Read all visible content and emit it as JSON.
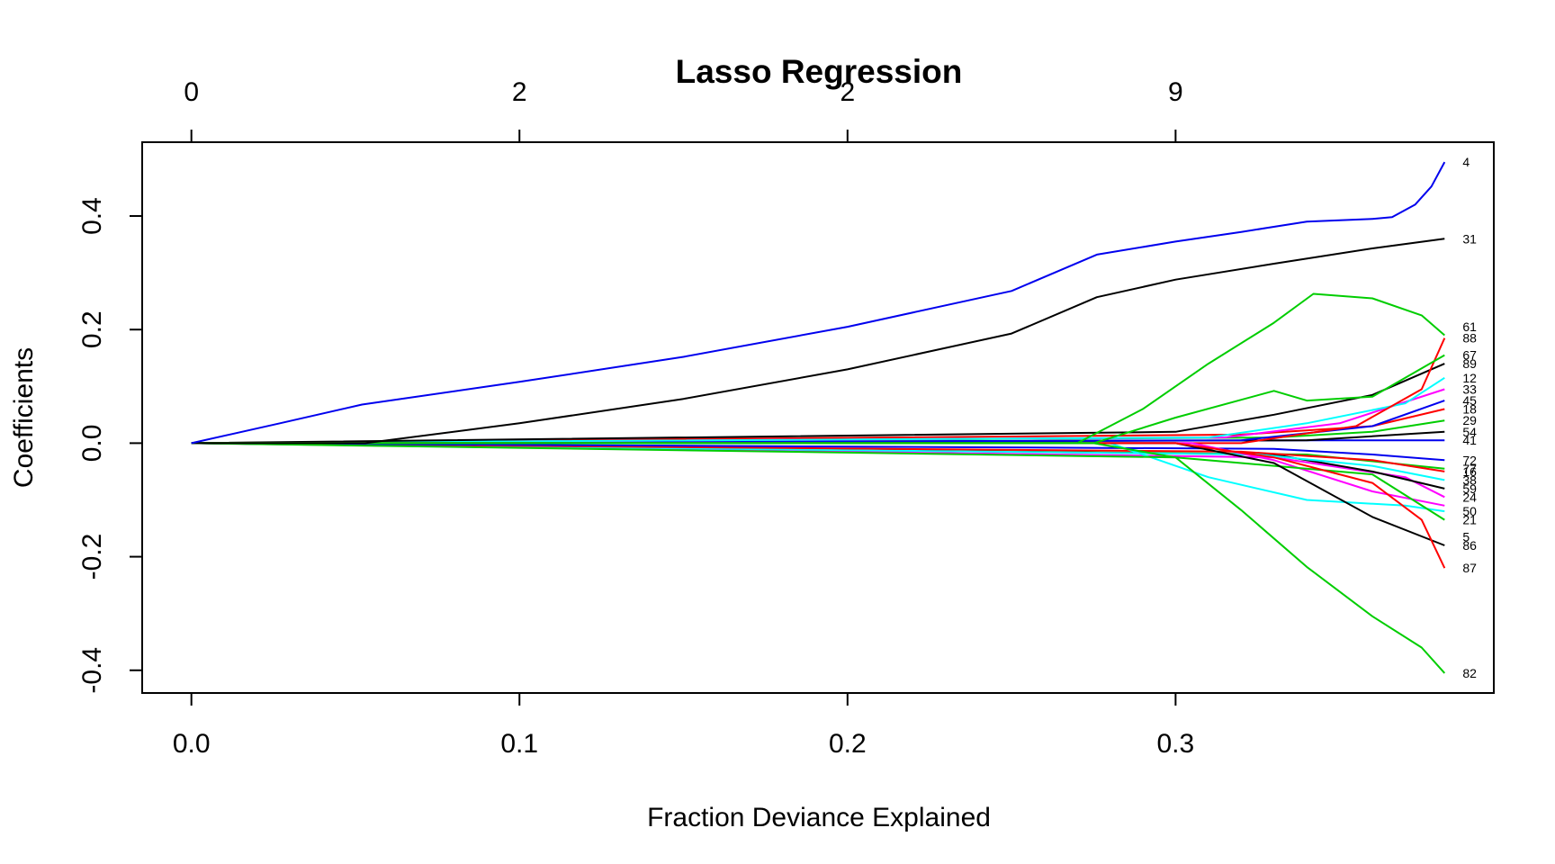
{
  "chart_data": {
    "type": "line",
    "title": "Lasso Regression",
    "xlabel": "Fraction Deviance Explained",
    "ylabel": "Coefficients",
    "xlim": [
      -0.015,
      0.397
    ],
    "ylim": [
      -0.44,
      0.53
    ],
    "x_ticks": [
      {
        "value": 0.0,
        "label": "0.0"
      },
      {
        "value": 0.1,
        "label": "0.1"
      },
      {
        "value": 0.2,
        "label": "0.2"
      },
      {
        "value": 0.3,
        "label": "0.3"
      }
    ],
    "y_ticks": [
      {
        "value": -0.4,
        "label": "-0.4"
      },
      {
        "value": -0.2,
        "label": "-0.2"
      },
      {
        "value": 0.0,
        "label": "0.0"
      },
      {
        "value": 0.2,
        "label": "0.2"
      },
      {
        "value": 0.4,
        "label": "0.4"
      }
    ],
    "top_ticks": [
      {
        "value": 0.0,
        "label": "0"
      },
      {
        "value": 0.1,
        "label": "2"
      },
      {
        "value": 0.2,
        "label": "2"
      },
      {
        "value": 0.3,
        "label": "9"
      }
    ],
    "grid": false,
    "series": [
      {
        "name": "4",
        "label_y": 0.495,
        "color": "#0000ee",
        "points": [
          [
            0,
            0
          ],
          [
            0.027,
            0.035
          ],
          [
            0.052,
            0.068
          ],
          [
            0.1,
            0.108
          ],
          [
            0.15,
            0.152
          ],
          [
            0.2,
            0.205
          ],
          [
            0.25,
            0.268
          ],
          [
            0.276,
            0.332
          ],
          [
            0.3,
            0.355
          ],
          [
            0.32,
            0.372
          ],
          [
            0.34,
            0.39
          ],
          [
            0.36,
            0.395
          ],
          [
            0.366,
            0.398
          ],
          [
            0.373,
            0.42
          ],
          [
            0.378,
            0.452
          ],
          [
            0.382,
            0.495
          ]
        ]
      },
      {
        "name": "31",
        "label_y": 0.36,
        "color": "#000000",
        "points": [
          [
            0,
            0
          ],
          [
            0.053,
            0
          ],
          [
            0.1,
            0.035
          ],
          [
            0.15,
            0.078
          ],
          [
            0.2,
            0.13
          ],
          [
            0.25,
            0.193
          ],
          [
            0.276,
            0.257
          ],
          [
            0.3,
            0.288
          ],
          [
            0.33,
            0.316
          ],
          [
            0.36,
            0.343
          ],
          [
            0.382,
            0.36
          ]
        ]
      },
      {
        "name": "61",
        "label_y": 0.205,
        "color": "#00cd00",
        "points": [
          [
            0,
            0
          ],
          [
            0.27,
            0
          ],
          [
            0.29,
            0.06
          ],
          [
            0.31,
            0.14
          ],
          [
            0.33,
            0.212
          ],
          [
            0.342,
            0.263
          ],
          [
            0.36,
            0.255
          ],
          [
            0.375,
            0.225
          ],
          [
            0.382,
            0.19
          ]
        ]
      },
      {
        "name": "82",
        "label_y": -0.405,
        "color": "#00cd00",
        "points": [
          [
            0,
            0
          ],
          [
            0.275,
            0
          ],
          [
            0.3,
            -0.025
          ],
          [
            0.32,
            -0.118
          ],
          [
            0.34,
            -0.218
          ],
          [
            0.36,
            -0.305
          ],
          [
            0.375,
            -0.36
          ],
          [
            0.382,
            -0.405
          ]
        ]
      },
      {
        "name": "67",
        "label_y": 0.155,
        "color": "#00cd00",
        "points": [
          [
            0,
            0
          ],
          [
            0.275,
            0
          ],
          [
            0.3,
            0.045
          ],
          [
            0.33,
            0.092
          ],
          [
            0.34,
            0.075
          ],
          [
            0.36,
            0.082
          ],
          [
            0.382,
            0.155
          ]
        ]
      },
      {
        "name": "87",
        "label_y": -0.22,
        "color": "#ff0000",
        "points": [
          [
            0,
            0
          ],
          [
            0.3,
            0
          ],
          [
            0.33,
            -0.025
          ],
          [
            0.36,
            -0.07
          ],
          [
            0.375,
            -0.135
          ],
          [
            0.382,
            -0.22
          ]
        ]
      },
      {
        "name": "86",
        "label_y": -0.18,
        "color": "#000000",
        "points": [
          [
            0,
            0
          ],
          [
            0.3,
            0
          ],
          [
            0.33,
            -0.035
          ],
          [
            0.36,
            -0.13
          ],
          [
            0.382,
            -0.18
          ]
        ]
      },
      {
        "name": "21",
        "label_y": -0.135,
        "color": "#00cd00",
        "points": [
          [
            0,
            0
          ],
          [
            0.3,
            -0.025
          ],
          [
            0.33,
            -0.04
          ],
          [
            0.36,
            -0.055
          ],
          [
            0.382,
            -0.135
          ]
        ]
      },
      {
        "name": "50",
        "label_y": -0.12,
        "color": "#00ffff",
        "points": [
          [
            0,
            0
          ],
          [
            0.28,
            0
          ],
          [
            0.31,
            -0.06
          ],
          [
            0.34,
            -0.1
          ],
          [
            0.37,
            -0.11
          ],
          [
            0.382,
            -0.12
          ]
        ]
      },
      {
        "name": "5",
        "label_y": -0.165,
        "color": "#ff00ff",
        "points": [
          [
            0,
            0
          ],
          [
            0.305,
            0
          ],
          [
            0.33,
            -0.03
          ],
          [
            0.36,
            -0.085
          ],
          [
            0.382,
            -0.11
          ]
        ]
      },
      {
        "name": "88",
        "label_y": 0.185,
        "color": "#ff0000",
        "points": [
          [
            0,
            0
          ],
          [
            0.32,
            0
          ],
          [
            0.355,
            0.03
          ],
          [
            0.375,
            0.095
          ],
          [
            0.382,
            0.185
          ]
        ]
      },
      {
        "name": "89",
        "label_y": 0.14,
        "color": "#000000",
        "points": [
          [
            0,
            0
          ],
          [
            0.3,
            0.02
          ],
          [
            0.33,
            0.05
          ],
          [
            0.36,
            0.085
          ],
          [
            0.382,
            0.14
          ]
        ]
      },
      {
        "name": "12",
        "label_y": 0.115,
        "color": "#00ffff",
        "points": [
          [
            0,
            0
          ],
          [
            0.31,
            0.01
          ],
          [
            0.34,
            0.035
          ],
          [
            0.37,
            0.07
          ],
          [
            0.382,
            0.115
          ]
        ]
      },
      {
        "name": "33",
        "label_y": 0.095,
        "color": "#ff00ff",
        "points": [
          [
            0,
            0
          ],
          [
            0.315,
            0.01
          ],
          [
            0.35,
            0.035
          ],
          [
            0.382,
            0.095
          ]
        ]
      },
      {
        "name": "45",
        "label_y": 0.075,
        "color": "#0000ee",
        "points": [
          [
            0,
            0
          ],
          [
            0.32,
            0.005
          ],
          [
            0.36,
            0.03
          ],
          [
            0.382,
            0.075
          ]
        ]
      },
      {
        "name": "18",
        "label_y": 0.06,
        "color": "#ff0000",
        "points": [
          [
            0,
            0
          ],
          [
            0.32,
            0.015
          ],
          [
            0.36,
            0.03
          ],
          [
            0.382,
            0.06
          ]
        ]
      },
      {
        "name": "29",
        "label_y": 0.04,
        "color": "#00cd00",
        "points": [
          [
            0,
            0
          ],
          [
            0.33,
            0.01
          ],
          [
            0.36,
            0.02
          ],
          [
            0.382,
            0.04
          ]
        ]
      },
      {
        "name": "54",
        "label_y": 0.02,
        "color": "#000000",
        "points": [
          [
            0,
            0
          ],
          [
            0.34,
            0.005
          ],
          [
            0.382,
            0.02
          ]
        ]
      },
      {
        "name": "72",
        "label_y": -0.03,
        "color": "#0000ee",
        "points": [
          [
            0,
            0
          ],
          [
            0.33,
            -0.01
          ],
          [
            0.36,
            -0.02
          ],
          [
            0.382,
            -0.03
          ]
        ]
      },
      {
        "name": "16",
        "label_y": -0.05,
        "color": "#ff0000",
        "points": [
          [
            0,
            0
          ],
          [
            0.32,
            -0.015
          ],
          [
            0.36,
            -0.03
          ],
          [
            0.382,
            -0.05
          ]
        ]
      },
      {
        "name": "38",
        "label_y": -0.065,
        "color": "#00ffff",
        "points": [
          [
            0,
            0
          ],
          [
            0.325,
            -0.02
          ],
          [
            0.36,
            -0.04
          ],
          [
            0.382,
            -0.065
          ]
        ]
      },
      {
        "name": "59",
        "label_y": -0.08,
        "color": "#000000",
        "points": [
          [
            0,
            0
          ],
          [
            0.33,
            -0.02
          ],
          [
            0.36,
            -0.05
          ],
          [
            0.382,
            -0.08
          ]
        ]
      },
      {
        "name": "24",
        "label_y": -0.095,
        "color": "#ff00ff",
        "points": [
          [
            0,
            0
          ],
          [
            0.33,
            -0.025
          ],
          [
            0.37,
            -0.06
          ],
          [
            0.382,
            -0.095
          ]
        ]
      },
      {
        "name": "77",
        "label_y": -0.045,
        "color": "#00cd00",
        "points": [
          [
            0,
            0
          ],
          [
            0.34,
            -0.02
          ],
          [
            0.382,
            -0.045
          ]
        ]
      },
      {
        "name": "41",
        "label_y": 0.005,
        "color": "#0000ee",
        "points": [
          [
            0,
            0
          ],
          [
            0.34,
            0.005
          ],
          [
            0.382,
            0.005
          ]
        ]
      }
    ]
  }
}
